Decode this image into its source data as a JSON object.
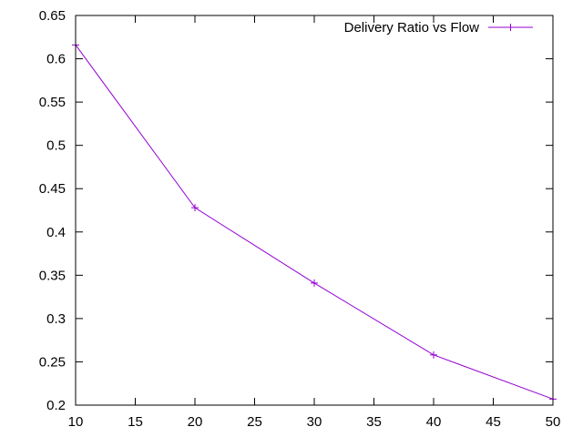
{
  "chart_data": {
    "type": "line",
    "title": "",
    "xlabel": "",
    "ylabel": "",
    "xlim": [
      10,
      50
    ],
    "ylim": [
      0.2,
      0.65
    ],
    "xticks": [
      10,
      15,
      20,
      25,
      30,
      35,
      40,
      45,
      50
    ],
    "xtick_labels": [
      "10",
      "15",
      "20",
      "25",
      "30",
      "35",
      "40",
      "45",
      "50"
    ],
    "yticks": [
      0.2,
      0.25,
      0.3,
      0.35,
      0.4,
      0.45,
      0.5,
      0.55,
      0.6,
      0.65
    ],
    "ytick_labels": [
      "0.2",
      "0.25",
      "0.3",
      "0.35",
      "0.4",
      "0.45",
      "0.5",
      "0.55",
      "0.6",
      "0.65"
    ],
    "grid": false,
    "legend_position": "top-right",
    "series": [
      {
        "name": "Delivery Ratio vs Flow",
        "color": "#9400d3",
        "marker": "plus",
        "x": [
          10,
          20,
          30,
          40,
          50
        ],
        "y": [
          0.616,
          0.428,
          0.341,
          0.258,
          0.207
        ]
      }
    ]
  }
}
